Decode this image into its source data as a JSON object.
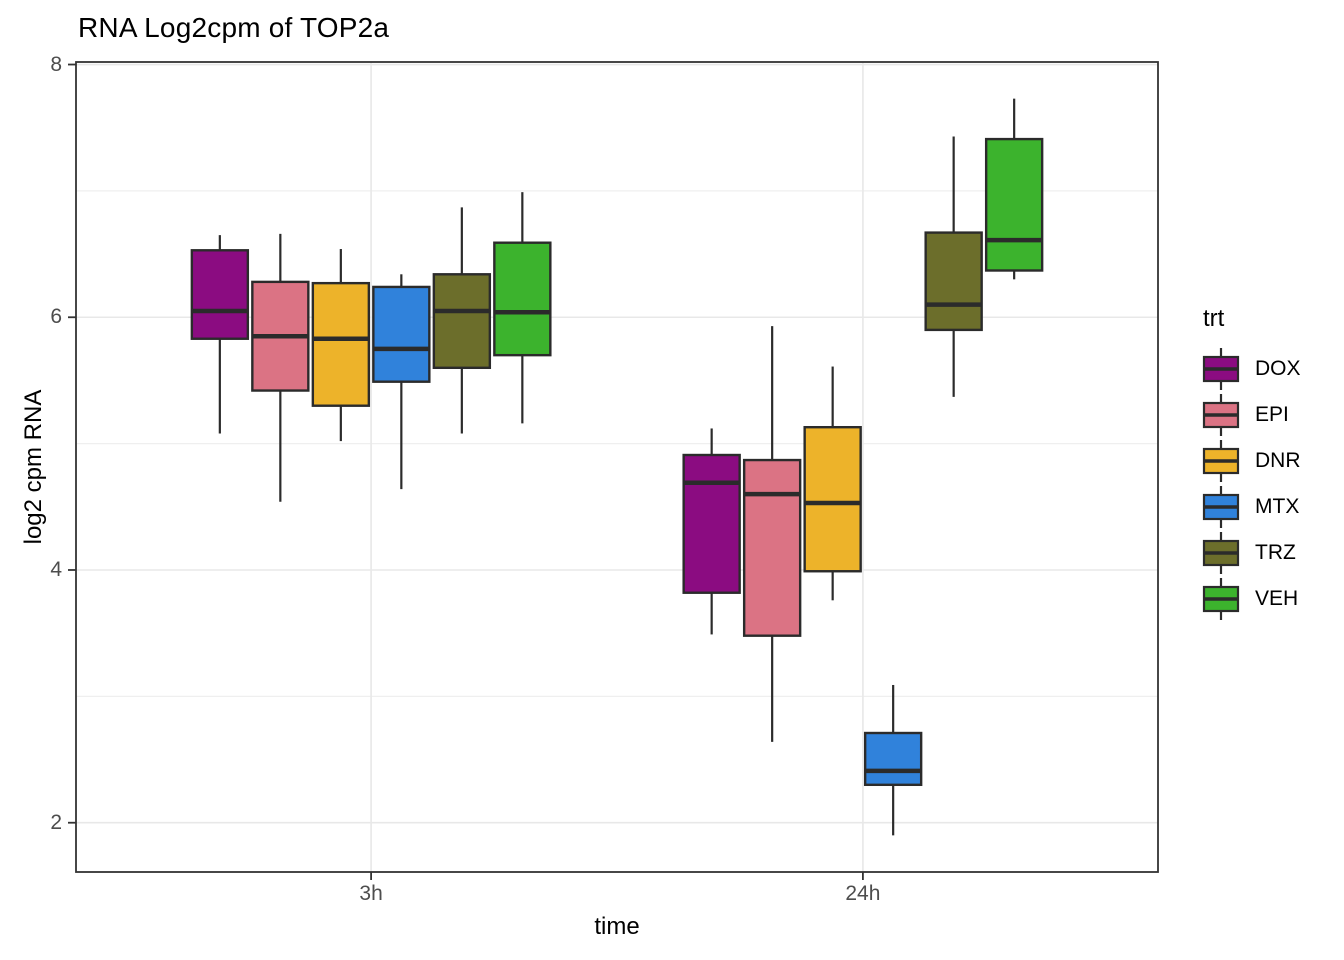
{
  "chart_data": {
    "type": "boxplot",
    "title": "RNA Log2cpm of TOP2a",
    "xlabel": "time",
    "ylabel": "log2 cpm RNA",
    "categories": [
      "3h",
      "24h"
    ],
    "y_axis": {
      "ticks": [
        2,
        4,
        6,
        8
      ],
      "minor_ticks": [
        3,
        5,
        7
      ],
      "range": [
        1.61,
        8.02
      ]
    },
    "grid": true,
    "legend": {
      "title": "trt",
      "position": "right"
    },
    "stats_format": [
      "whisker_low",
      "q1",
      "median",
      "q3",
      "whisker_high"
    ],
    "series": [
      {
        "name": "DOX",
        "color": "#8B0C81",
        "boxes": [
          [
            5.08,
            5.83,
            6.05,
            6.53,
            6.65
          ],
          [
            3.49,
            3.82,
            4.69,
            4.91,
            5.12
          ]
        ]
      },
      {
        "name": "EPI",
        "color": "#DB7384",
        "boxes": [
          [
            4.54,
            5.42,
            5.85,
            6.28,
            6.66
          ],
          [
            2.64,
            3.48,
            4.6,
            4.87,
            5.93
          ]
        ]
      },
      {
        "name": "DNR",
        "color": "#EDB32A",
        "boxes": [
          [
            5.02,
            5.3,
            5.83,
            6.27,
            6.54
          ],
          [
            3.76,
            3.99,
            4.53,
            5.13,
            5.61
          ]
        ]
      },
      {
        "name": "MTX",
        "color": "#3082DB",
        "boxes": [
          [
            4.64,
            5.49,
            5.75,
            6.24,
            6.34
          ],
          [
            1.9,
            2.3,
            2.41,
            2.71,
            3.09
          ]
        ]
      },
      {
        "name": "TRZ",
        "color": "#6C6E2B",
        "boxes": [
          [
            5.08,
            5.6,
            6.05,
            6.34,
            6.87
          ],
          [
            5.37,
            5.9,
            6.1,
            6.67,
            7.43
          ]
        ]
      },
      {
        "name": "VEH",
        "color": "#3CB32D",
        "boxes": [
          [
            5.16,
            5.7,
            6.04,
            6.59,
            6.99
          ],
          [
            6.3,
            6.37,
            6.61,
            7.41,
            7.73
          ]
        ]
      }
    ]
  },
  "style_colors": {
    "panel_border": "#333333",
    "grid_major": "#E8E8E8",
    "grid_minor": "#EFEFEF",
    "tick_text": "#4D4D4D",
    "box_stroke": "#2B2B2B",
    "text": "#000000"
  }
}
